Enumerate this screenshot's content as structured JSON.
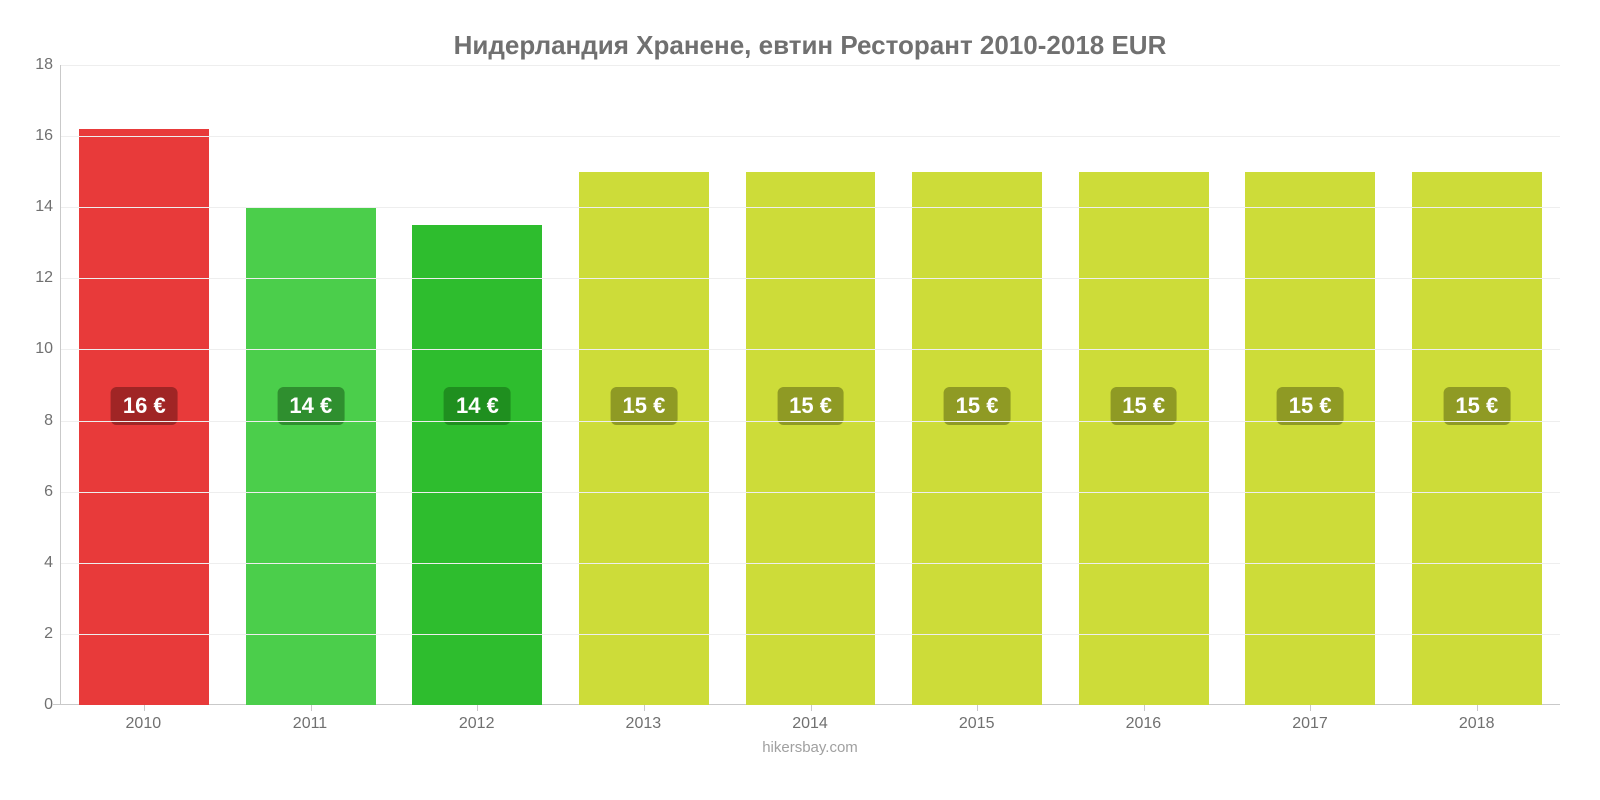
{
  "chart": {
    "type": "bar",
    "title": "Нидерландия Хранене, евтин Ресторант 2010-2018 EUR",
    "title_fontsize": 26,
    "title_color": "#707070",
    "categories": [
      "2010",
      "2011",
      "2012",
      "2013",
      "2014",
      "2015",
      "2016",
      "2017",
      "2018"
    ],
    "values": [
      16.2,
      14.0,
      13.5,
      15.0,
      15.0,
      15.0,
      15.0,
      15.0,
      15.0
    ],
    "value_labels": [
      "16 €",
      "14 €",
      "14 €",
      "15 €",
      "15 €",
      "15 €",
      "15 €",
      "15 €",
      "15 €"
    ],
    "bar_colors": [
      "#e83a3a",
      "#4bce4b",
      "#2ebd2e",
      "#cddc39",
      "#cddc39",
      "#cddc39",
      "#cddc39",
      "#cddc39",
      "#cddc39"
    ],
    "badge_bg_colors": [
      "#a02525",
      "#2f8f2f",
      "#1f8f1f",
      "#8f9a24",
      "#8f9a24",
      "#8f9a24",
      "#8f9a24",
      "#8f9a24",
      "#8f9a24"
    ],
    "label_fontsize": 22,
    "badge_text_color": "#ffffff",
    "ylim": [
      0,
      18
    ],
    "ytick_step": 2,
    "yticks": [
      0,
      2,
      4,
      6,
      8,
      10,
      12,
      14,
      16,
      18
    ],
    "axis_color": "#c9c9c9",
    "grid_color": "#eeeeee",
    "tick_label_color": "#707070",
    "tick_fontsize": 16,
    "background_color": "#ffffff",
    "bar_width": 0.78,
    "source_text": "hikersbay.com",
    "source_fontsize": 15,
    "source_color": "#a0a0a0",
    "badge_center_value": 8.4
  }
}
